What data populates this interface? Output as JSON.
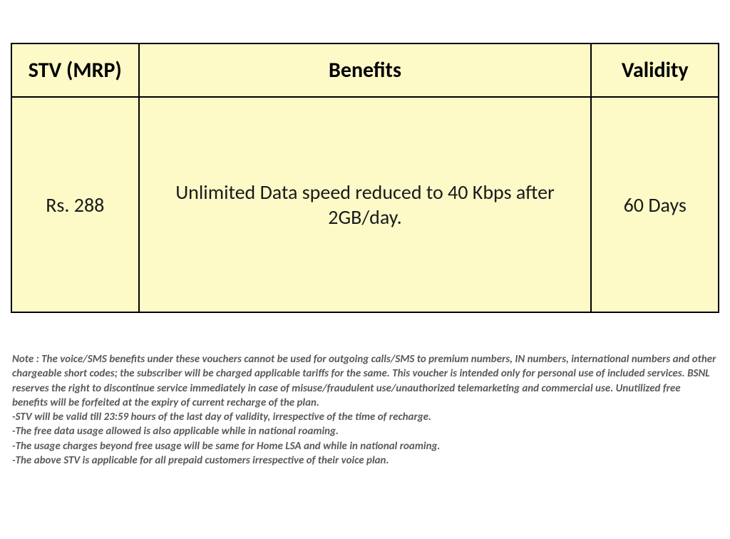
{
  "table": {
    "columns": [
      "STV (MRP)",
      "Benefits",
      "Validity"
    ],
    "rows": [
      {
        "stv": "Rs. 288",
        "benefits": "Unlimited Data speed reduced to 40 Kbps after 2GB/day.",
        "validity": "60 Days"
      }
    ],
    "header_bg": "#fdfac8",
    "cell_bg": "#fdfac8",
    "border_color": "#000000",
    "header_fontsize": 30,
    "cell_fontsize": 28
  },
  "notes": {
    "lines": [
      "Note : The voice/SMS benefits under these vouchers cannot be used for outgoing calls/SMS to premium numbers, IN numbers, international numbers and other chargeable short codes; the subscriber will be charged applicable tariffs for the same. This voucher is intended only for personal use of included services. BSNL reserves the right to discontinue service immediately in case of misuse/fraudulent use/unauthorized telemarketing and commercial use. Unutilized free benefits will be forfeited at the expiry of current recharge of the plan.",
      "-STV will be valid till 23:59 hours of the last day of validity, irrespective of the time of recharge.",
      "-The free data usage allowed is also applicable while in national roaming.",
      "-The usage charges beyond free usage will be same for Home LSA and while in national roaming.",
      "-The above STV is applicable for all prepaid customers irrespective of their voice plan."
    ],
    "font_color": "#5a5a5a",
    "fontsize": 15
  }
}
